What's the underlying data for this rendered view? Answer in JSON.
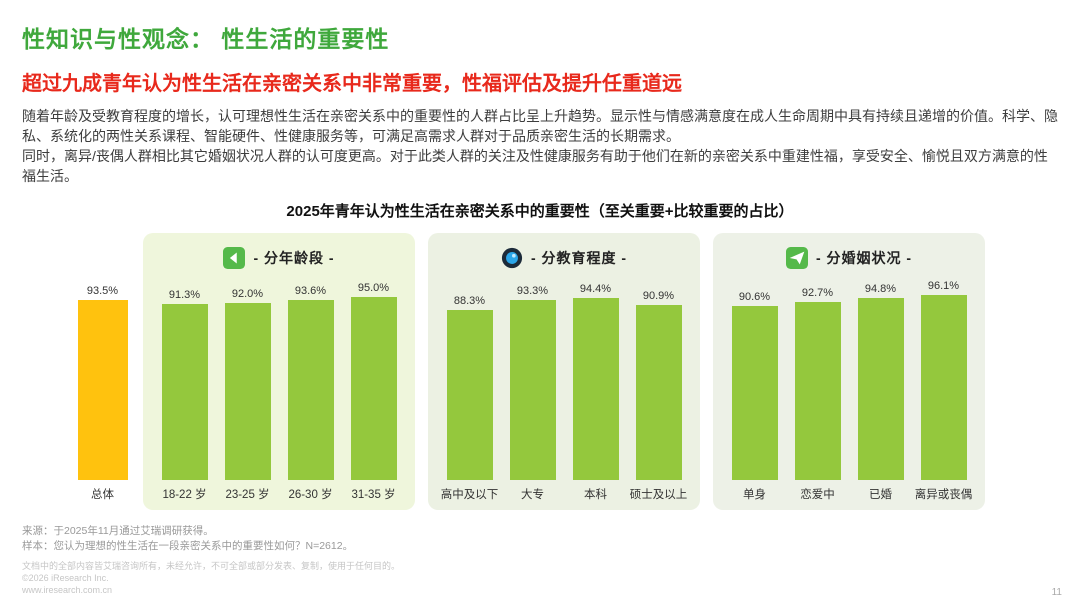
{
  "colors": {
    "title_green": "#3FA83C",
    "subtitle_red": "#E8291C",
    "bar_green": "#94C83D",
    "overall_yellow": "#FFC20E"
  },
  "header": {
    "title": "性知识与性观念： 性生活的重要性",
    "subtitle": "超过九成青年认为性生活在亲密关系中非常重要，性福评估及提升任重道远",
    "paragraph1": "随着年龄及受教育程度的增长，认可理想性生活在亲密关系中的重要性的人群占比呈上升趋势。显示性与情感满意度在成人生命周期中具有持续且递增的价值。科学、隐私、系统化的两性关系课程、智能硬件、性健康服务等，可满足高需求人群对于品质亲密生活的长期需求。",
    "paragraph2": "同时，离异/丧偶人群相比其它婚姻状况人群的认可度更高。对于此类人群的关注及性健康服务有助于他们在新的亲密关系中重建性福，享受安全、愉悦且双方满意的性福生活。"
  },
  "chart_data": {
    "type": "bar",
    "title": "2025年青年认为性生活在亲密关系中的重要性（至关重要+比较重要的占比）",
    "xlabel": "",
    "ylabel": "",
    "ylim": [
      0,
      100
    ],
    "unit": "%",
    "legend": "none",
    "grid": false,
    "groups": [
      {
        "name": "总体",
        "panel": false,
        "bar_color": "#FFC20E",
        "bars": [
          {
            "label": "总体",
            "value": 93.5
          }
        ]
      },
      {
        "name": "- 分年龄段 -",
        "icon": "age-group-icon",
        "panel": true,
        "panel_color": "#EFF6DC",
        "bar_color": "#94C83D",
        "bars": [
          {
            "label": "18-22 岁",
            "value": 91.3
          },
          {
            "label": "23-25 岁",
            "value": 92.0
          },
          {
            "label": "26-30 岁",
            "value": 93.6
          },
          {
            "label": "31-35 岁",
            "value": 95.0
          }
        ]
      },
      {
        "name": "- 分教育程度 -",
        "icon": "education-icon",
        "panel": true,
        "panel_color": "#ECF1E3",
        "bar_color": "#94C83D",
        "bars": [
          {
            "label": "高中及以下",
            "value": 88.3
          },
          {
            "label": "大专",
            "value": 93.3
          },
          {
            "label": "本科",
            "value": 94.4
          },
          {
            "label": "硕士及以上",
            "value": 90.9
          }
        ]
      },
      {
        "name": "- 分婚姻状况 -",
        "icon": "marital-status-icon",
        "panel": true,
        "panel_color": "#EDF1E7",
        "bar_color": "#94C83D",
        "bars": [
          {
            "label": "单身",
            "value": 90.6
          },
          {
            "label": "恋爱中",
            "value": 92.7
          },
          {
            "label": "已婚",
            "value": 94.8
          },
          {
            "label": "离异或丧偶",
            "value": 96.1
          }
        ]
      }
    ]
  },
  "footer": {
    "source": "来源：于2025年11月通过艾瑞调研获得。",
    "sample": "样本：您认为理想的性生活在一段亲密关系中的重要性如何？N=2612。",
    "legal": "文档中的全部内容皆艾瑞咨询所有，未经允许，不可全部或部分发表、复制，使用于任何目的。",
    "copyright": "©2026 iResearch Inc.",
    "website": "www.iresearch.com.cn",
    "page_number": "11"
  }
}
